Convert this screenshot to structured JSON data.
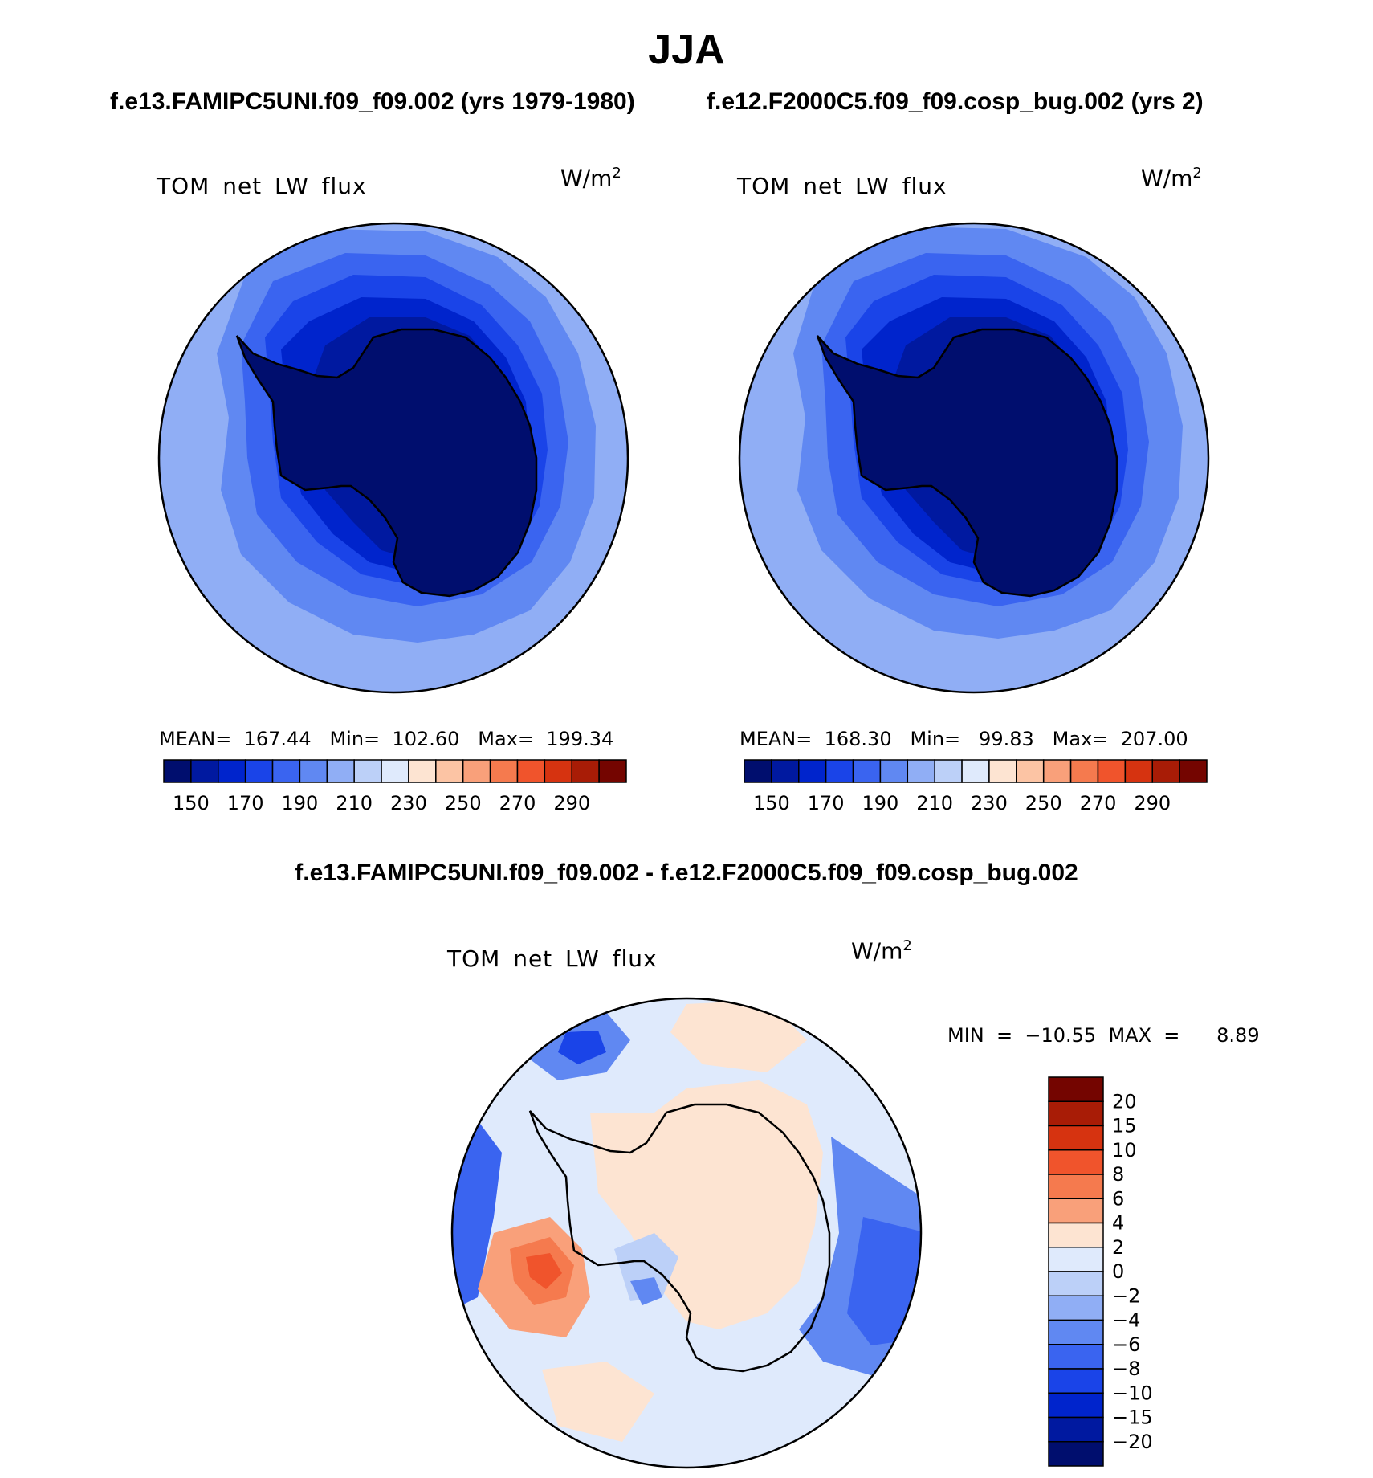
{
  "title": "JJA",
  "panels": [
    {
      "case_title": "f.e13.FAMIPC5UNI.f09_f09.002 (yrs 1979-1980)",
      "variable": "TOM net LW flux",
      "units": "W/m",
      "units_exp": "2",
      "stats": "MEAN=  167.44   Min=  102.60   Max=  199.34"
    },
    {
      "case_title": "f.e12.F2000C5.f09_f09.cosp_bug.002 (yrs 2)",
      "variable": "TOM net LW flux",
      "units": "W/m",
      "units_exp": "2",
      "stats": "MEAN=  168.30   Min=   99.83   Max=  207.00"
    }
  ],
  "difference": {
    "title": "f.e13.FAMIPC5UNI.f09_f09.002 - f.e12.F2000C5.f09_f09.cosp_bug.002",
    "variable": "TOM net LW flux",
    "units": "W/m",
    "units_exp": "2",
    "minmax": "MIN  =  −10.55  MAX  =      8.89"
  },
  "chart_data": [
    {
      "type": "heatmap",
      "projection": "south-polar-stereographic",
      "title": "TOM net LW flux",
      "units": "W/m2",
      "stats": {
        "mean": 167.44,
        "min": 102.6,
        "max": 199.34
      },
      "colorbar": {
        "orientation": "horizontal",
        "ticks": [
          "150",
          "170",
          "190",
          "210",
          "230",
          "250",
          "270",
          "290"
        ],
        "colors": [
          "#000e6e",
          "#0019a0",
          "#0024cc",
          "#1a44e8",
          "#3a64f0",
          "#6088f2",
          "#90aef5",
          "#bcd0f8",
          "#dfeafc",
          "#fde4d2",
          "#fcc4a4",
          "#f9a07a",
          "#f57a4e",
          "#f0542c",
          "#d63310",
          "#a81c06",
          "#740500"
        ]
      },
      "regions": [
        {
          "level": "210-220",
          "color": "#90aef5"
        },
        {
          "level": "200-210",
          "color": "#6088f2"
        },
        {
          "level": "190-200",
          "color": "#3a64f0"
        },
        {
          "level": "180-190",
          "color": "#1a44e8"
        },
        {
          "level": "160-170",
          "color": "#0024cc"
        },
        {
          "level": "150-160",
          "color": "#0019a0"
        },
        {
          "level": "<150",
          "color": "#000e6e"
        }
      ]
    },
    {
      "type": "heatmap",
      "projection": "south-polar-stereographic",
      "title": "TOM net LW flux",
      "units": "W/m2",
      "stats": {
        "mean": 168.3,
        "min": 99.83,
        "max": 207.0
      },
      "colorbar": {
        "orientation": "horizontal",
        "ticks": [
          "150",
          "170",
          "190",
          "210",
          "230",
          "250",
          "270",
          "290"
        ],
        "colors": [
          "#000e6e",
          "#0019a0",
          "#0024cc",
          "#1a44e8",
          "#3a64f0",
          "#6088f2",
          "#90aef5",
          "#bcd0f8",
          "#dfeafc",
          "#fde4d2",
          "#fcc4a4",
          "#f9a07a",
          "#f57a4e",
          "#f0542c",
          "#d63310",
          "#a81c06",
          "#740500"
        ]
      },
      "regions": [
        {
          "level": "210-220",
          "color": "#90aef5"
        },
        {
          "level": "200-210",
          "color": "#6088f2"
        },
        {
          "level": "190-200",
          "color": "#3a64f0"
        },
        {
          "level": "180-190",
          "color": "#1a44e8"
        },
        {
          "level": "160-170",
          "color": "#0024cc"
        },
        {
          "level": "150-160",
          "color": "#0019a0"
        },
        {
          "level": "<150",
          "color": "#000e6e"
        }
      ]
    },
    {
      "type": "heatmap",
      "projection": "south-polar-stereographic",
      "title": "TOM net LW flux (difference)",
      "units": "W/m2",
      "stats": {
        "min": -10.55,
        "max": 8.89
      },
      "colorbar": {
        "orientation": "vertical",
        "ticks": [
          "20",
          "15",
          "10",
          "8",
          "6",
          "4",
          "2",
          "0",
          "−2",
          "−4",
          "−6",
          "−8",
          "−10",
          "−15",
          "−20"
        ],
        "colors": [
          "#740500",
          "#a81c06",
          "#d63310",
          "#f0542c",
          "#f57a4e",
          "#f9a07a",
          "#fde4d2",
          "#dfeafc",
          "#bcd0f8",
          "#90aef5",
          "#6088f2",
          "#3a64f0",
          "#1a44e8",
          "#0024cc",
          "#0019a0",
          "#000e6e"
        ]
      }
    }
  ]
}
